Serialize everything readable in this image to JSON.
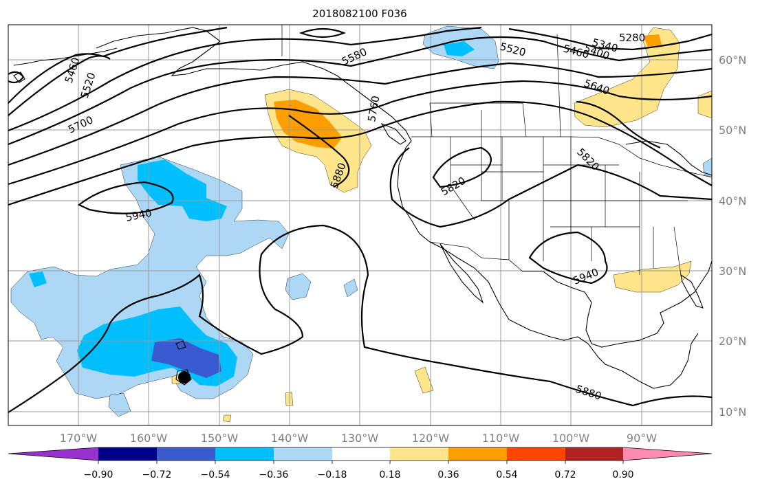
{
  "title": "2018082100 F036",
  "lat_labels": [
    "60°N",
    "50°N",
    "40°N",
    "30°N",
    "20°N",
    "10°N"
  ],
  "lon_labels": [
    "170°W",
    "160°W",
    "150°W",
    "140°W",
    "130°W",
    "120°W",
    "110°W",
    "100°W",
    "90°W"
  ],
  "colorbar": {
    "tick_labels": [
      "−0.90",
      "−0.72",
      "−0.54",
      "−0.36",
      "−0.18",
      "0.18",
      "0.36",
      "0.54",
      "0.72",
      "0.90"
    ],
    "colors": [
      "#9932cc",
      "#00008b",
      "#3a5bd0",
      "#00bfff",
      "#add8f5",
      "#ffffff",
      "#ffe58a",
      "#ff9e00",
      "#ff4500",
      "#b22222",
      "#ff8cb0"
    ]
  },
  "contour_labels": [
    {
      "id": "5460-west",
      "text": "5460"
    },
    {
      "id": "5520-west",
      "text": "5520"
    },
    {
      "id": "5700-west",
      "text": "5700"
    },
    {
      "id": "5580-north",
      "text": "5580"
    },
    {
      "id": "5520-north",
      "text": "5520"
    },
    {
      "id": "5460-north",
      "text": "5460"
    },
    {
      "id": "5400-north",
      "text": "5400"
    },
    {
      "id": "5340-north",
      "text": "5340"
    },
    {
      "id": "5280-north",
      "text": "5280"
    },
    {
      "id": "5640-east",
      "text": "5640"
    },
    {
      "id": "5760-coast",
      "text": "5760"
    },
    {
      "id": "5820-east",
      "text": "5820"
    },
    {
      "id": "5820-west-us",
      "text": "5820"
    },
    {
      "id": "5880-pnw",
      "text": "5880"
    },
    {
      "id": "5940-pacific",
      "text": "5940"
    },
    {
      "id": "5940-texas",
      "text": "5940"
    },
    {
      "id": "5880-mexico",
      "text": "5880"
    }
  ],
  "colors": {
    "negative_light": "#add8f5",
    "negative_mid": "#00bfff",
    "negative_strong": "#3a5bd0",
    "positive_light": "#ffe58a",
    "positive_mid": "#ff9e00",
    "positive_strong": "#ff4500"
  }
}
